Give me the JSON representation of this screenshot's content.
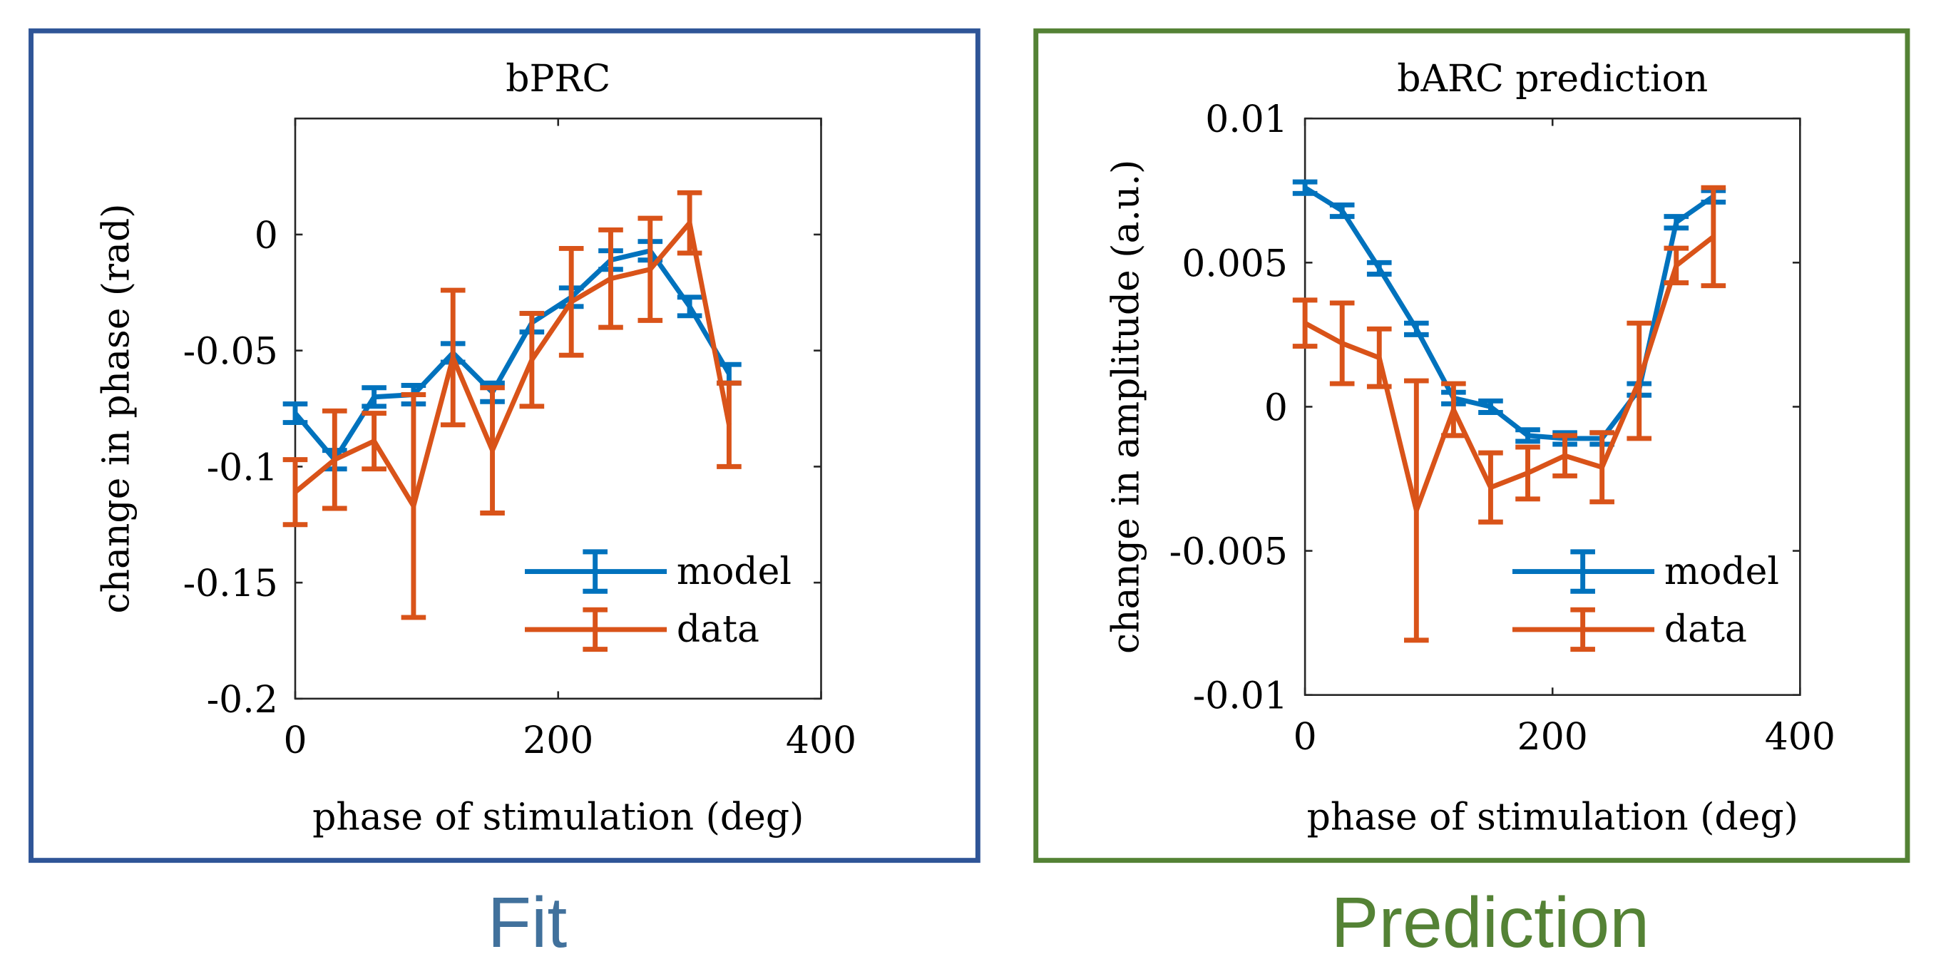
{
  "panels": [
    {
      "caption": "Fit",
      "frame_color": "#2F5597",
      "caption_color": "#41719C"
    },
    {
      "caption": "Prediction",
      "frame_color": "#548235",
      "caption_color": "#548235"
    }
  ],
  "chart_data": [
    {
      "type": "line",
      "title": "bPRC",
      "xlabel": "phase of stimulation (deg)",
      "ylabel": "change in phase (rad)",
      "xlim": [
        0,
        400
      ],
      "ylim": [
        -0.2,
        0.05
      ],
      "xticks": [
        0,
        200,
        400
      ],
      "xtick_labels": [
        "0",
        "200",
        "400"
      ],
      "yticks": [
        -0.2,
        -0.15,
        -0.1,
        -0.05,
        0
      ],
      "ytick_labels": [
        "-0.2",
        "-0.15",
        "-0.1",
        "-0.05",
        "0"
      ],
      "grid": false,
      "legend_placement": "bottom-right",
      "x": [
        0,
        30,
        60,
        90,
        120,
        150,
        180,
        210,
        240,
        270,
        300,
        330
      ],
      "series": [
        {
          "name": "model",
          "color": "#0072BD",
          "values": [
            -0.077,
            -0.097,
            -0.07,
            -0.069,
            -0.051,
            -0.068,
            -0.038,
            -0.027,
            -0.011,
            -0.007,
            -0.031,
            -0.06
          ],
          "errors": [
            0.004,
            0.004,
            0.004,
            0.004,
            0.004,
            0.004,
            0.004,
            0.004,
            0.004,
            0.004,
            0.004,
            0.004
          ]
        },
        {
          "name": "data",
          "color": "#D95319",
          "values": [
            -0.111,
            -0.097,
            -0.089,
            -0.117,
            -0.053,
            -0.093,
            -0.054,
            -0.029,
            -0.019,
            -0.015,
            0.005,
            -0.082
          ],
          "errors": [
            0.014,
            0.021,
            0.012,
            0.048,
            0.029,
            0.027,
            0.02,
            0.023,
            0.021,
            0.022,
            0.013,
            0.018
          ]
        }
      ]
    },
    {
      "type": "line",
      "title": "bARC prediction",
      "xlabel": "phase of stimulation (deg)",
      "ylabel": "change in amplitude (a.u.)",
      "xlim": [
        0,
        400
      ],
      "ylim": [
        -0.01,
        0.01
      ],
      "xticks": [
        0,
        200,
        400
      ],
      "xtick_labels": [
        "0",
        "200",
        "400"
      ],
      "yticks": [
        -0.01,
        -0.005,
        0,
        0.005,
        0.01
      ],
      "ytick_labels": [
        "-0.01",
        "-0.005",
        "0",
        "0.005",
        "0.01"
      ],
      "grid": false,
      "legend_placement": "bottom-right",
      "x": [
        0,
        30,
        60,
        90,
        120,
        150,
        180,
        210,
        240,
        270,
        300,
        330
      ],
      "series": [
        {
          "name": "model",
          "color": "#0072BD",
          "values": [
            0.0076,
            0.0068,
            0.0048,
            0.0027,
            0.0003,
            0.0,
            -0.001,
            -0.0011,
            -0.0011,
            0.0006,
            0.0064,
            0.0073
          ],
          "errors": [
            0.0002,
            0.0002,
            0.0002,
            0.0002,
            0.0002,
            0.0002,
            0.0002,
            0.0002,
            0.0002,
            0.0002,
            0.0002,
            0.0002
          ]
        },
        {
          "name": "data",
          "color": "#D95319",
          "values": [
            0.0029,
            0.0022,
            0.0017,
            -0.0036,
            -0.0001,
            -0.0028,
            -0.0023,
            -0.0017,
            -0.0021,
            0.0009,
            0.0049,
            0.0059
          ],
          "errors": [
            0.0008,
            0.0014,
            0.001,
            0.0045,
            0.0009,
            0.0012,
            0.0009,
            0.0007,
            0.0012,
            0.002,
            0.0006,
            0.0017
          ]
        }
      ]
    }
  ]
}
